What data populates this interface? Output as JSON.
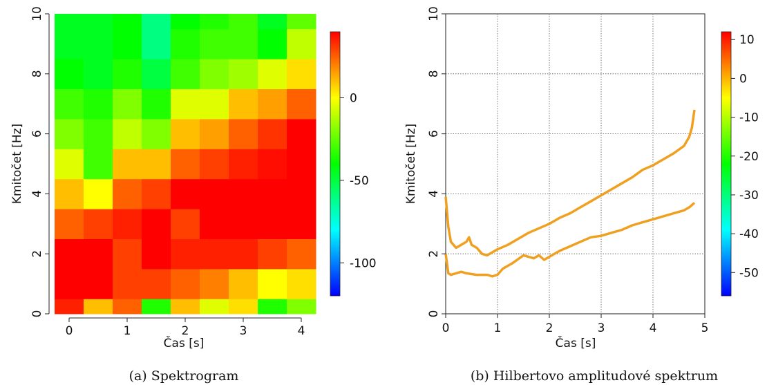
{
  "chart_data": [
    {
      "type": "heatmap",
      "caption": "(a) Spektrogram",
      "xlabel": "Čas [s]",
      "ylabel": "Kmitočet [Hz]",
      "xlim": [
        -0.25,
        4.25
      ],
      "ylim": [
        0,
        10
      ],
      "xticks": [
        0,
        1,
        2,
        3,
        4
      ],
      "yticks": [
        0,
        2,
        4,
        6,
        8,
        10
      ],
      "x_centers": [
        0,
        0.5,
        1,
        1.5,
        2,
        2.5,
        3,
        3.5,
        4
      ],
      "y_edges": [
        0,
        0.5,
        1.5,
        2.5,
        3.5,
        4.5,
        5.5,
        6.5,
        7.5,
        8.5,
        9.5,
        10
      ],
      "z_rows_bottom_to_top": [
        [
          35,
          10,
          25,
          -35,
          10,
          -5,
          5,
          -35,
          -20
        ],
        [
          45,
          40,
          30,
          30,
          25,
          20,
          10,
          0,
          5
        ],
        [
          45,
          42,
          30,
          45,
          35,
          35,
          35,
          30,
          25
        ],
        [
          25,
          30,
          35,
          45,
          30,
          40,
          40,
          40,
          40
        ],
        [
          10,
          0,
          25,
          30,
          40,
          40,
          40,
          40,
          40
        ],
        [
          -5,
          -30,
          10,
          10,
          25,
          30,
          35,
          38,
          40
        ],
        [
          -20,
          -30,
          -10,
          -20,
          10,
          15,
          25,
          32,
          40
        ],
        [
          -30,
          -35,
          -20,
          -35,
          -5,
          -5,
          10,
          15,
          25
        ],
        [
          -40,
          -45,
          -35,
          -50,
          -30,
          -20,
          -15,
          -5,
          5
        ],
        [
          -45,
          -45,
          -40,
          -60,
          -35,
          -30,
          -30,
          -40,
          -10
        ],
        [
          -45,
          -45,
          -40,
          -60,
          -40,
          -35,
          -30,
          -45,
          -25
        ]
      ],
      "zlim": [
        -120,
        40
      ],
      "colorbar_ticks": [
        "0",
        "-50",
        "-100"
      ],
      "colorbar_tick_values": [
        0,
        -50,
        -100
      ],
      "colormap": [
        "#0000ff",
        "#00ffff",
        "#00ff00",
        "#ffff00",
        "#ff0000"
      ]
    },
    {
      "type": "line",
      "caption": "(b) Hilbertovo amplitudové spektrum",
      "xlabel": "Čas [s]",
      "ylabel": "Kmitočet [Hz]",
      "xlim": [
        0,
        5
      ],
      "ylim": [
        0,
        10
      ],
      "xticks": [
        0,
        1,
        2,
        3,
        4,
        5
      ],
      "yticks": [
        0,
        2,
        4,
        6,
        8,
        10
      ],
      "grid": true,
      "line_color": "#f0a020",
      "series": [
        {
          "x": [
            0.0,
            0.05,
            0.1,
            0.2,
            0.3,
            0.4,
            0.45,
            0.5,
            0.6,
            0.7,
            0.8,
            0.9,
            1.0,
            1.2,
            1.4,
            1.6,
            1.8,
            2.0,
            2.2,
            2.4,
            2.6,
            2.8,
            3.0,
            3.2,
            3.4,
            3.6,
            3.8,
            4.0,
            4.2,
            4.4,
            4.6,
            4.7,
            4.75,
            4.8
          ],
          "y": [
            3.9,
            2.9,
            2.4,
            2.2,
            2.3,
            2.4,
            2.55,
            2.3,
            2.2,
            2.0,
            1.95,
            2.05,
            2.15,
            2.3,
            2.5,
            2.7,
            2.85,
            3.0,
            3.2,
            3.35,
            3.55,
            3.75,
            3.95,
            4.15,
            4.35,
            4.55,
            4.8,
            4.95,
            5.15,
            5.35,
            5.6,
            5.9,
            6.2,
            6.8
          ]
        },
        {
          "x": [
            0.0,
            0.05,
            0.1,
            0.2,
            0.3,
            0.4,
            0.6,
            0.8,
            0.9,
            1.0,
            1.1,
            1.3,
            1.5,
            1.7,
            1.8,
            1.9,
            2.0,
            2.2,
            2.4,
            2.6,
            2.8,
            3.0,
            3.2,
            3.4,
            3.6,
            3.8,
            4.0,
            4.2,
            4.4,
            4.6,
            4.7,
            4.8
          ],
          "y": [
            2.0,
            1.35,
            1.3,
            1.35,
            1.4,
            1.35,
            1.3,
            1.3,
            1.25,
            1.3,
            1.5,
            1.7,
            1.95,
            1.85,
            1.95,
            1.8,
            1.9,
            2.1,
            2.25,
            2.4,
            2.55,
            2.6,
            2.7,
            2.8,
            2.95,
            3.05,
            3.15,
            3.25,
            3.35,
            3.45,
            3.55,
            3.7
          ]
        }
      ],
      "zlim": [
        -56,
        12
      ],
      "colorbar_ticks": [
        "10",
        "0",
        "-10",
        "-20",
        "-30",
        "-40",
        "-50"
      ],
      "colorbar_tick_values": [
        10,
        0,
        -10,
        -20,
        -30,
        -40,
        -50
      ],
      "colormap": [
        "#0000ff",
        "#00ffff",
        "#00ff00",
        "#ffff00",
        "#ff0000"
      ]
    }
  ]
}
